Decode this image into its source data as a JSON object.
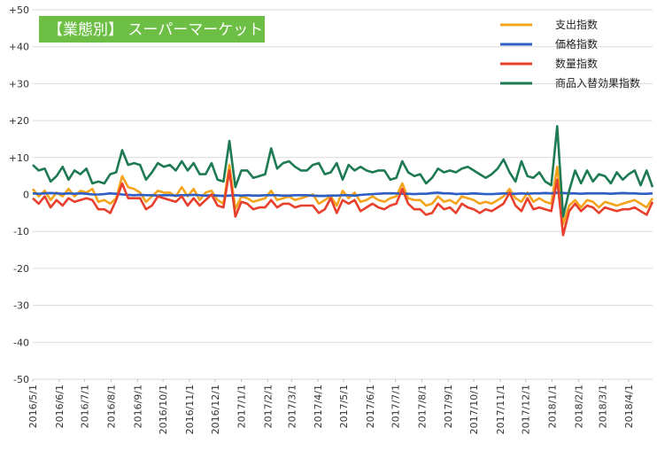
{
  "chart_data": {
    "type": "line",
    "title": "【業態別】 スーパーマーケット",
    "ylim": [
      -50,
      50
    ],
    "y_ticks": [
      "+50",
      "+40",
      "+30",
      "+20",
      "+10",
      "0",
      "-10",
      "-20",
      "-30",
      "-40",
      "-50"
    ],
    "x_labels": [
      "2016/5/1",
      "2016/6/1",
      "2016/7/1",
      "2016/8/1",
      "2016/9/1",
      "2016/10/1",
      "2016/11/1",
      "2016/12/1",
      "2017/1/1",
      "2017/2/1",
      "2017/3/1",
      "2017/4/1",
      "2017/5/1",
      "2017/6/1",
      "2017/7/1",
      "2017/8/1",
      "2017/9/1",
      "2017/10/1",
      "2017/11/1",
      "2017/12/1",
      "2018/1/1",
      "2018/2/1",
      "2018/3/1",
      "2018/4/1"
    ],
    "x_start": "2016/5/1",
    "x_end": "2018/4/29",
    "points_per_series": 105,
    "grid": true,
    "legend_position": "top-right",
    "colors": {
      "badge": "#6cbf44"
    },
    "series": [
      {
        "name": "支出指数",
        "color": "#f5a31a",
        "values": [
          1.5,
          -0.5,
          1.0,
          -1.5,
          0.5,
          -0.5,
          1.5,
          -0.5,
          1.0,
          0.5,
          1.5,
          -2.0,
          -1.5,
          -2.5,
          -1.0,
          5.0,
          2.0,
          1.5,
          0.5,
          -2.0,
          -0.5,
          1.0,
          0.5,
          0.5,
          -0.5,
          2.0,
          -0.5,
          1.5,
          -1.5,
          0.5,
          1.0,
          -1.5,
          -2.5,
          8.0,
          -4.0,
          -0.5,
          -1.0,
          -2.0,
          -1.5,
          -1.0,
          1.0,
          -1.5,
          -1.0,
          -0.5,
          -1.5,
          -1.0,
          -0.5,
          0.0,
          -2.5,
          -1.5,
          -0.5,
          -3.0,
          1.0,
          -1.0,
          0.5,
          -2.0,
          -1.5,
          -0.5,
          -1.5,
          -2.0,
          -1.0,
          -0.5,
          3.0,
          -1.0,
          -1.5,
          -1.5,
          -3.0,
          -2.5,
          -0.5,
          -2.0,
          -1.5,
          -2.5,
          -0.5,
          -1.0,
          -1.5,
          -2.5,
          -2.0,
          -2.5,
          -1.5,
          -0.5,
          1.5,
          -1.0,
          -2.0,
          0.5,
          -2.0,
          -1.0,
          -2.0,
          -2.5,
          7.5,
          -8.0,
          -3.0,
          -1.5,
          -3.5,
          -1.5,
          -2.0,
          -3.5,
          -2.0,
          -2.5,
          -3.0,
          -2.5,
          -2.0,
          -1.5,
          -2.5,
          -3.5,
          -1.0
        ]
      },
      {
        "name": "価格指数",
        "color": "#2f5fc4",
        "values": [
          0.3,
          0.2,
          0.3,
          0.4,
          0.3,
          0.2,
          0.3,
          0.2,
          0.3,
          0.2,
          0.0,
          0.0,
          0.1,
          0.3,
          0.2,
          0.0,
          -0.1,
          -0.2,
          -0.1,
          -0.2,
          -0.2,
          -0.3,
          -0.2,
          -0.2,
          -0.3,
          -0.2,
          -0.2,
          -0.1,
          -0.2,
          -0.3,
          -0.2,
          -0.3,
          -0.4,
          -0.3,
          -0.2,
          -0.3,
          -0.2,
          -0.3,
          -0.3,
          -0.2,
          -0.2,
          -0.2,
          -0.3,
          -0.3,
          -0.2,
          -0.2,
          -0.2,
          -0.3,
          -0.4,
          -0.4,
          -0.3,
          -0.3,
          -0.2,
          -0.2,
          -0.3,
          -0.1,
          0.0,
          0.1,
          0.2,
          0.3,
          0.3,
          0.3,
          0.2,
          0.2,
          0.1,
          0.2,
          0.2,
          0.4,
          0.5,
          0.3,
          0.3,
          0.1,
          0.2,
          0.2,
          0.3,
          0.2,
          0.1,
          0.1,
          0.2,
          0.3,
          0.2,
          0.2,
          0.3,
          0.2,
          0.3,
          0.3,
          0.4,
          0.3,
          0.5,
          0.4,
          0.3,
          0.3,
          0.2,
          0.3,
          0.3,
          0.3,
          0.3,
          0.2,
          0.3,
          0.4,
          0.3,
          0.3,
          0.2,
          0.2,
          0.3
        ]
      },
      {
        "name": "数量指数",
        "color": "#e8402c",
        "values": [
          -1.0,
          -2.5,
          -0.5,
          -3.5,
          -1.5,
          -3.0,
          -1.0,
          -2.0,
          -1.5,
          -1.0,
          -1.5,
          -4.0,
          -4.0,
          -5.0,
          -1.5,
          3.0,
          -1.0,
          -1.0,
          -1.0,
          -4.0,
          -3.0,
          -0.5,
          -1.0,
          -1.5,
          -2.0,
          -0.5,
          -3.0,
          -1.0,
          -3.0,
          -1.5,
          0.0,
          -3.0,
          -3.5,
          6.5,
          -6.0,
          -2.0,
          -2.5,
          -4.0,
          -3.5,
          -3.5,
          -1.5,
          -3.5,
          -2.5,
          -2.5,
          -3.5,
          -3.0,
          -3.0,
          -3.0,
          -5.0,
          -4.0,
          -1.0,
          -5.0,
          -1.5,
          -2.5,
          -1.5,
          -4.5,
          -3.5,
          -2.5,
          -3.5,
          -4.0,
          -3.0,
          -2.5,
          1.5,
          -2.5,
          -4.0,
          -4.0,
          -5.5,
          -5.0,
          -2.5,
          -4.0,
          -3.5,
          -5.0,
          -2.5,
          -3.5,
          -4.0,
          -5.0,
          -4.0,
          -4.5,
          -3.5,
          -2.5,
          0.5,
          -3.0,
          -4.5,
          -1.0,
          -4.0,
          -3.5,
          -4.0,
          -4.5,
          4.0,
          -11.0,
          -4.5,
          -2.5,
          -4.5,
          -3.0,
          -3.5,
          -5.0,
          -3.5,
          -4.0,
          -4.5,
          -4.0,
          -4.0,
          -3.5,
          -4.5,
          -5.5,
          -2.0
        ]
      },
      {
        "name": "商品入替効果指数",
        "color": "#1e7a52",
        "values": [
          8.0,
          6.5,
          7.0,
          3.5,
          5.0,
          7.5,
          4.0,
          6.5,
          5.5,
          7.0,
          3.0,
          3.5,
          3.0,
          5.5,
          6.0,
          12.0,
          8.0,
          8.5,
          8.0,
          4.0,
          6.0,
          8.5,
          7.5,
          8.0,
          6.5,
          9.0,
          6.5,
          8.5,
          5.5,
          5.5,
          8.5,
          4.0,
          3.5,
          14.5,
          2.0,
          6.5,
          6.5,
          4.5,
          5.0,
          5.5,
          12.5,
          7.0,
          8.5,
          9.0,
          7.5,
          6.5,
          6.5,
          8.0,
          8.5,
          5.5,
          6.0,
          8.5,
          4.0,
          8.0,
          6.5,
          7.5,
          6.5,
          6.0,
          6.5,
          6.5,
          4.0,
          4.5,
          9.0,
          6.0,
          5.0,
          5.5,
          3.0,
          4.5,
          7.0,
          6.0,
          6.5,
          6.0,
          7.0,
          7.5,
          6.5,
          5.5,
          4.5,
          5.5,
          7.0,
          9.5,
          6.0,
          3.5,
          9.0,
          5.0,
          4.5,
          6.0,
          3.5,
          2.5,
          18.5,
          -6.0,
          1.0,
          6.5,
          3.0,
          6.5,
          3.5,
          5.5,
          5.0,
          3.0,
          6.0,
          4.0,
          5.5,
          6.5,
          2.5,
          6.5,
          2.0
        ]
      }
    ]
  }
}
